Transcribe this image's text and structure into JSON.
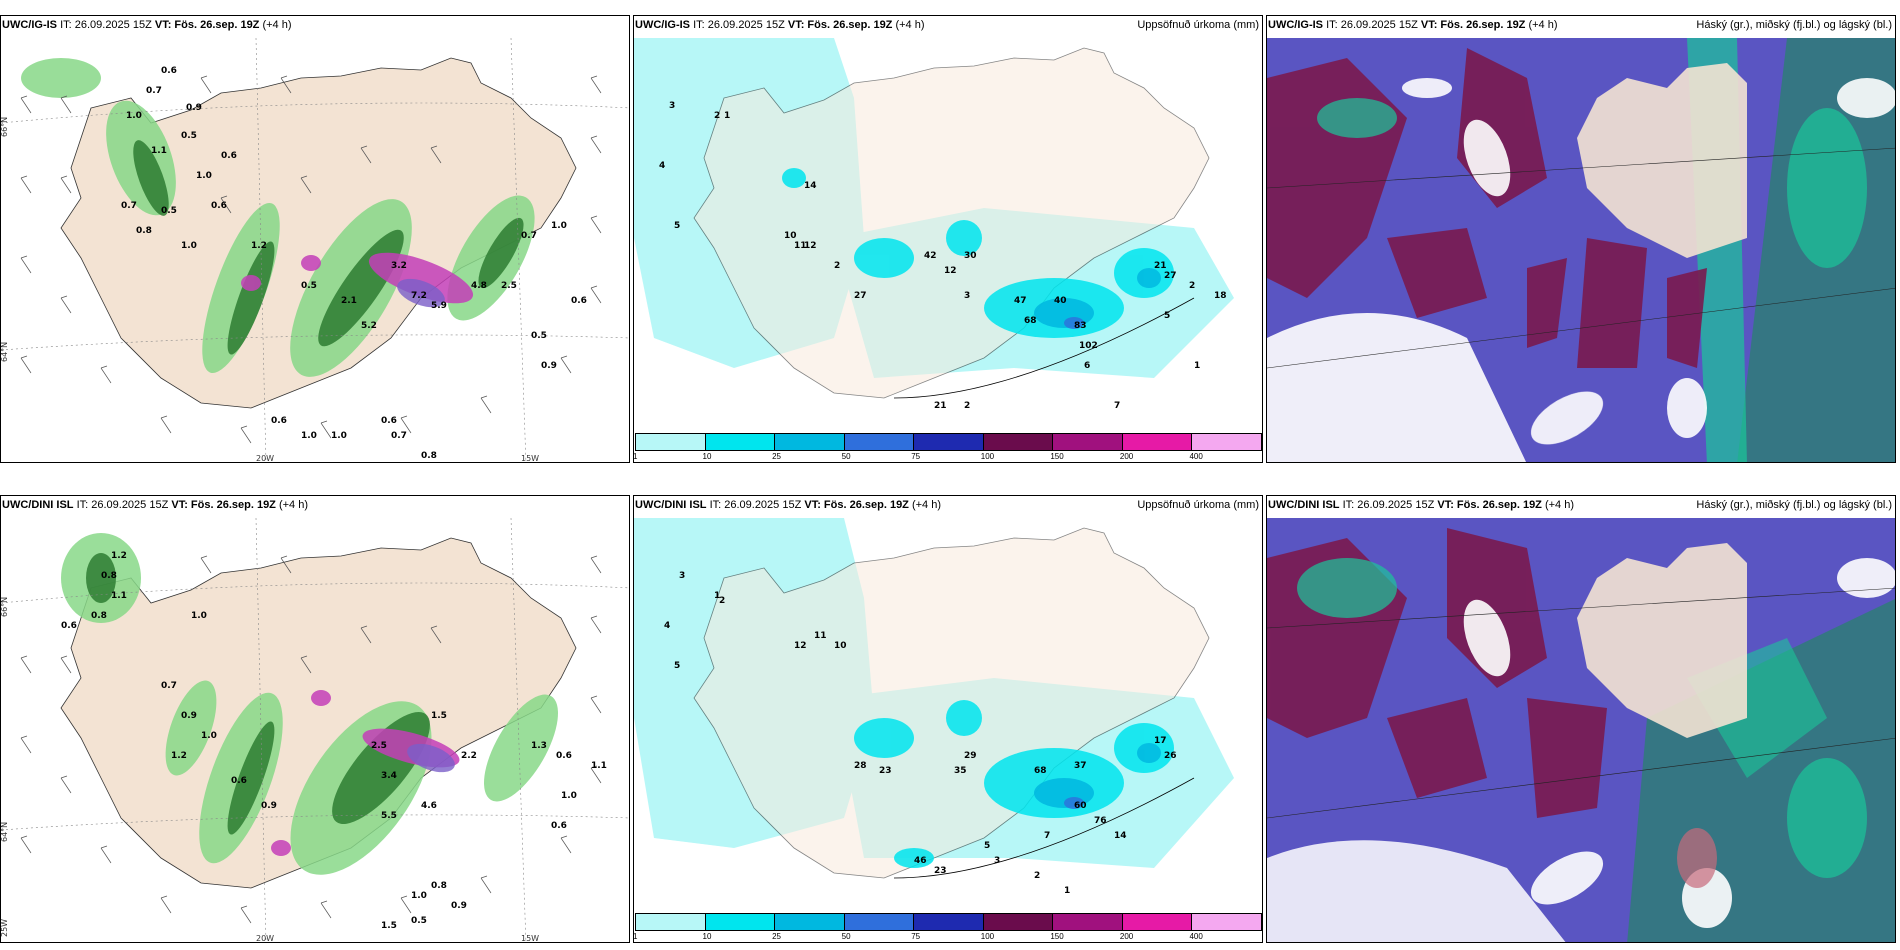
{
  "panels": [
    {
      "model": "UWC/IG-IS",
      "it": "IT: 26.09.2025 15Z",
      "vt_label": "VT:",
      "vt": "Fös. 26.sep. 19Z",
      "lead": "(+4 h)",
      "right_title": ""
    },
    {
      "model": "UWC/IG-IS",
      "it": "IT: 26.09.2025 15Z",
      "vt_label": "VT:",
      "vt": "Fös. 26.sep. 19Z",
      "lead": "(+4 h)",
      "right_title": "Uppsöfnuð úrkoma (mm)"
    },
    {
      "model": "UWC/IG-IS",
      "it": "IT: 26.09.2025 15Z",
      "vt_label": "VT:",
      "vt": "Fös. 26.sep. 19Z",
      "lead": "(+4 h)",
      "right_title": "Háský (gr.), miðský (fj.bl.) og lágský (bl.)"
    },
    {
      "model": "UWC/DINI ISL",
      "it": "IT: 26.09.2025 15Z",
      "vt_label": "VT:",
      "vt": "Fös. 26.sep. 19Z",
      "lead": "(+4 h)",
      "right_title": ""
    },
    {
      "model": "UWC/DINI ISL",
      "it": "IT: 26.09.2025 15Z",
      "vt_label": "VT:",
      "vt": "Fös. 26.sep. 19Z",
      "lead": "(+4 h)",
      "right_title": "Uppsöfnuð úrkoma (mm)"
    },
    {
      "model": "UWC/DINI ISL",
      "it": "IT: 26.09.2025 15Z",
      "vt_label": "VT:",
      "vt": "Fös. 26.sep. 19Z",
      "lead": "(+4 h)",
      "right_title": "Háský (gr.), miðský (fj.bl.) og lágský (bl.)"
    }
  ],
  "colorbar": {
    "ticks": [
      "1",
      "10",
      "25",
      "50",
      "75",
      "100",
      "150",
      "200",
      "400"
    ],
    "colors": [
      "#b7f7f7",
      "#00e5ee",
      "#00b8e0",
      "#2f6fdc",
      "#1e2ab0",
      "#6a0c4c",
      "#a0117e",
      "#e61aa6",
      "#f4a8f0"
    ]
  },
  "axis_labels": {
    "lat66": "66°N",
    "lat64": "64°N",
    "lon20": "20W",
    "lon15": "15W",
    "lon25": "25W"
  },
  "wind_values_top": [
    "0.6",
    "0.7",
    "1.0",
    "0.9",
    "0.5",
    "1.1",
    "0.6",
    "1.0",
    "0.7",
    "0.5",
    "0.6",
    "0.8",
    "1.0",
    "1.2",
    "0.5",
    "3.2",
    "2.1",
    "5.2",
    "7.2",
    "5.9",
    "4.8",
    "2.5",
    "0.7",
    "1.0",
    "0.6",
    "0.5",
    "0.9",
    "0.6",
    "1.0",
    "0.7",
    "0.8",
    "1.0",
    "0.6"
  ],
  "wind_values_bottom": [
    "1.2",
    "0.8",
    "1.1",
    "0.8",
    "0.6",
    "1.0",
    "0.7",
    "0.9",
    "1.0",
    "1.2",
    "0.6",
    "0.9",
    "2.5",
    "3.4",
    "5.5",
    "4.6",
    "2.2",
    "1.5",
    "0.8",
    "1.0",
    "0.9",
    "0.5",
    "1.3",
    "0.6",
    "1.1",
    "1.0",
    "0.6",
    "1.5"
  ],
  "precip_values_top": [
    "3",
    "2",
    "4",
    "5",
    "1",
    "14",
    "10",
    "11",
    "12",
    "2",
    "27",
    "42",
    "12",
    "30",
    "3",
    "47",
    "68",
    "40",
    "83",
    "102",
    "21",
    "27",
    "2",
    "18",
    "5",
    "1",
    "6",
    "7",
    "21",
    "2"
  ],
  "precip_values_bottom": [
    "3",
    "2",
    "4",
    "5",
    "1",
    "12",
    "11",
    "10",
    "28",
    "23",
    "35",
    "29",
    "68",
    "37",
    "60",
    "76",
    "17",
    "26",
    "14",
    "46",
    "23",
    "3",
    "2",
    "1",
    "5",
    "7"
  ]
}
